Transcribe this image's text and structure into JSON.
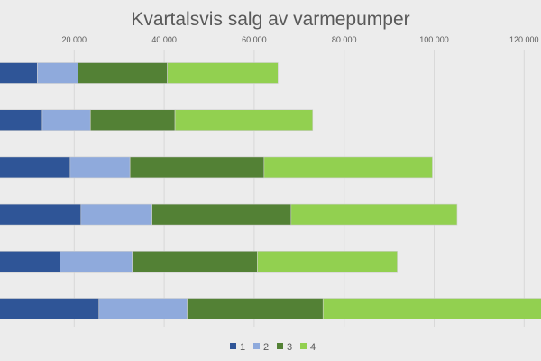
{
  "chart_data": {
    "type": "bar",
    "orientation": "horizontal",
    "stacked": true,
    "title": "Kvartalsvis salg av varmepumper",
    "xlabel": "",
    "ylabel": "",
    "xlim": [
      0,
      120000
    ],
    "x_ticks": [
      "20 000",
      "40 000",
      "60 000",
      "80 000",
      "100 000",
      "120 000"
    ],
    "x_tick_values": [
      20000,
      40000,
      60000,
      80000,
      100000,
      120000
    ],
    "grid": "vertical",
    "legend_position": "bottom",
    "series": [
      {
        "name": "1",
        "color": "#2f5597",
        "values": [
          11800,
          12900,
          19100,
          21500,
          16800,
          25500
        ]
      },
      {
        "name": "2",
        "color": "#8faadc",
        "values": [
          9000,
          10700,
          13300,
          15800,
          16100,
          19600
        ]
      },
      {
        "name": "3",
        "color": "#538135",
        "values": [
          19900,
          18800,
          29800,
          30900,
          27800,
          30200
        ]
      },
      {
        "name": "4",
        "color": "#92d050",
        "values": [
          24600,
          30600,
          37400,
          36900,
          31100,
          50000
        ]
      }
    ]
  }
}
